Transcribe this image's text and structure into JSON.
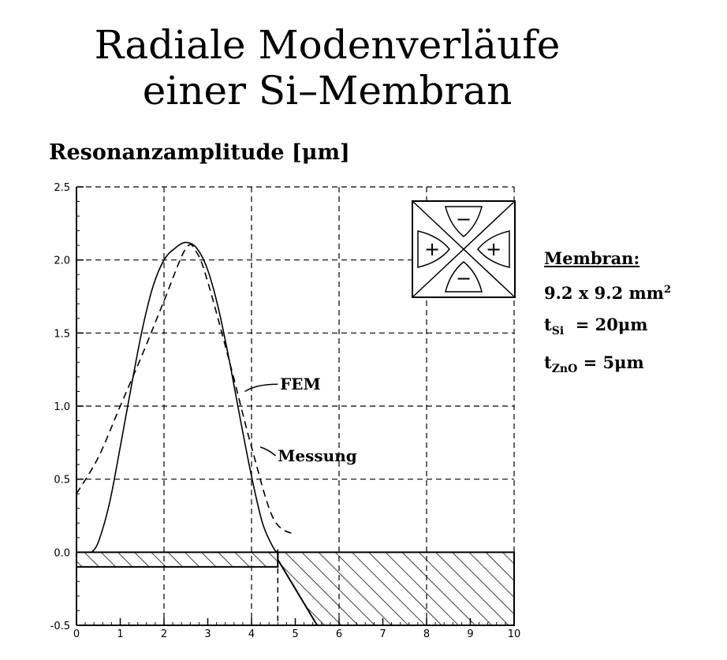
{
  "title_lines": [
    "Radiale Modenverläufe",
    "einer Si–Membran"
  ],
  "ylabel": "Resonanzamplitude [μm]",
  "info": {
    "heading": "Membran:",
    "size": "9.2 x 9.2 mm",
    "size_exp": "2",
    "tsi_t": "t",
    "tsi_sub": "Si",
    "tsi_val": "= 20μm",
    "tzno_t": "t",
    "tzno_sub": "ZnO",
    "tzno_val": "= 5μm"
  },
  "mode_icon": {
    "signs": [
      "−",
      "+",
      "+",
      "−"
    ]
  },
  "chart_data": {
    "type": "line",
    "title": "Radiale Modenverläufe einer Si–Membran",
    "xlabel": "",
    "ylabel": "Resonanzamplitude [μm]",
    "xlim": [
      0,
      10
    ],
    "ylim": [
      -0.5,
      2.5
    ],
    "xticks": [
      "0",
      "1",
      "2",
      "3",
      "4",
      "5",
      "6",
      "7",
      "8",
      "9",
      "10"
    ],
    "yticks": [
      "-0.5",
      "0.0",
      "0.5",
      "1.0",
      "1.5",
      "2.0",
      "2.5"
    ],
    "grid": true,
    "annotations": [
      "FEM",
      "Messung"
    ],
    "series": [
      {
        "name": "FEM",
        "style": "solid",
        "x": [
          0.35,
          0.5,
          0.75,
          1.0,
          1.25,
          1.5,
          1.75,
          2.0,
          2.25,
          2.5,
          2.75,
          3.0,
          3.25,
          3.5,
          3.75,
          4.0,
          4.25,
          4.5,
          4.6
        ],
        "y": [
          0.0,
          0.07,
          0.33,
          0.72,
          1.13,
          1.52,
          1.82,
          2.0,
          2.08,
          2.12,
          2.08,
          1.93,
          1.66,
          1.3,
          0.9,
          0.52,
          0.2,
          0.03,
          0.0
        ]
      },
      {
        "name": "Messung",
        "style": "dashed",
        "x": [
          0.0,
          0.5,
          1.0,
          1.5,
          2.0,
          2.5,
          2.75,
          3.0,
          3.5,
          4.0,
          4.5,
          5.0
        ],
        "y": [
          0.4,
          0.65,
          1.0,
          1.35,
          1.72,
          2.08,
          2.05,
          1.85,
          1.3,
          0.72,
          0.23,
          0.12
        ]
      }
    ]
  }
}
